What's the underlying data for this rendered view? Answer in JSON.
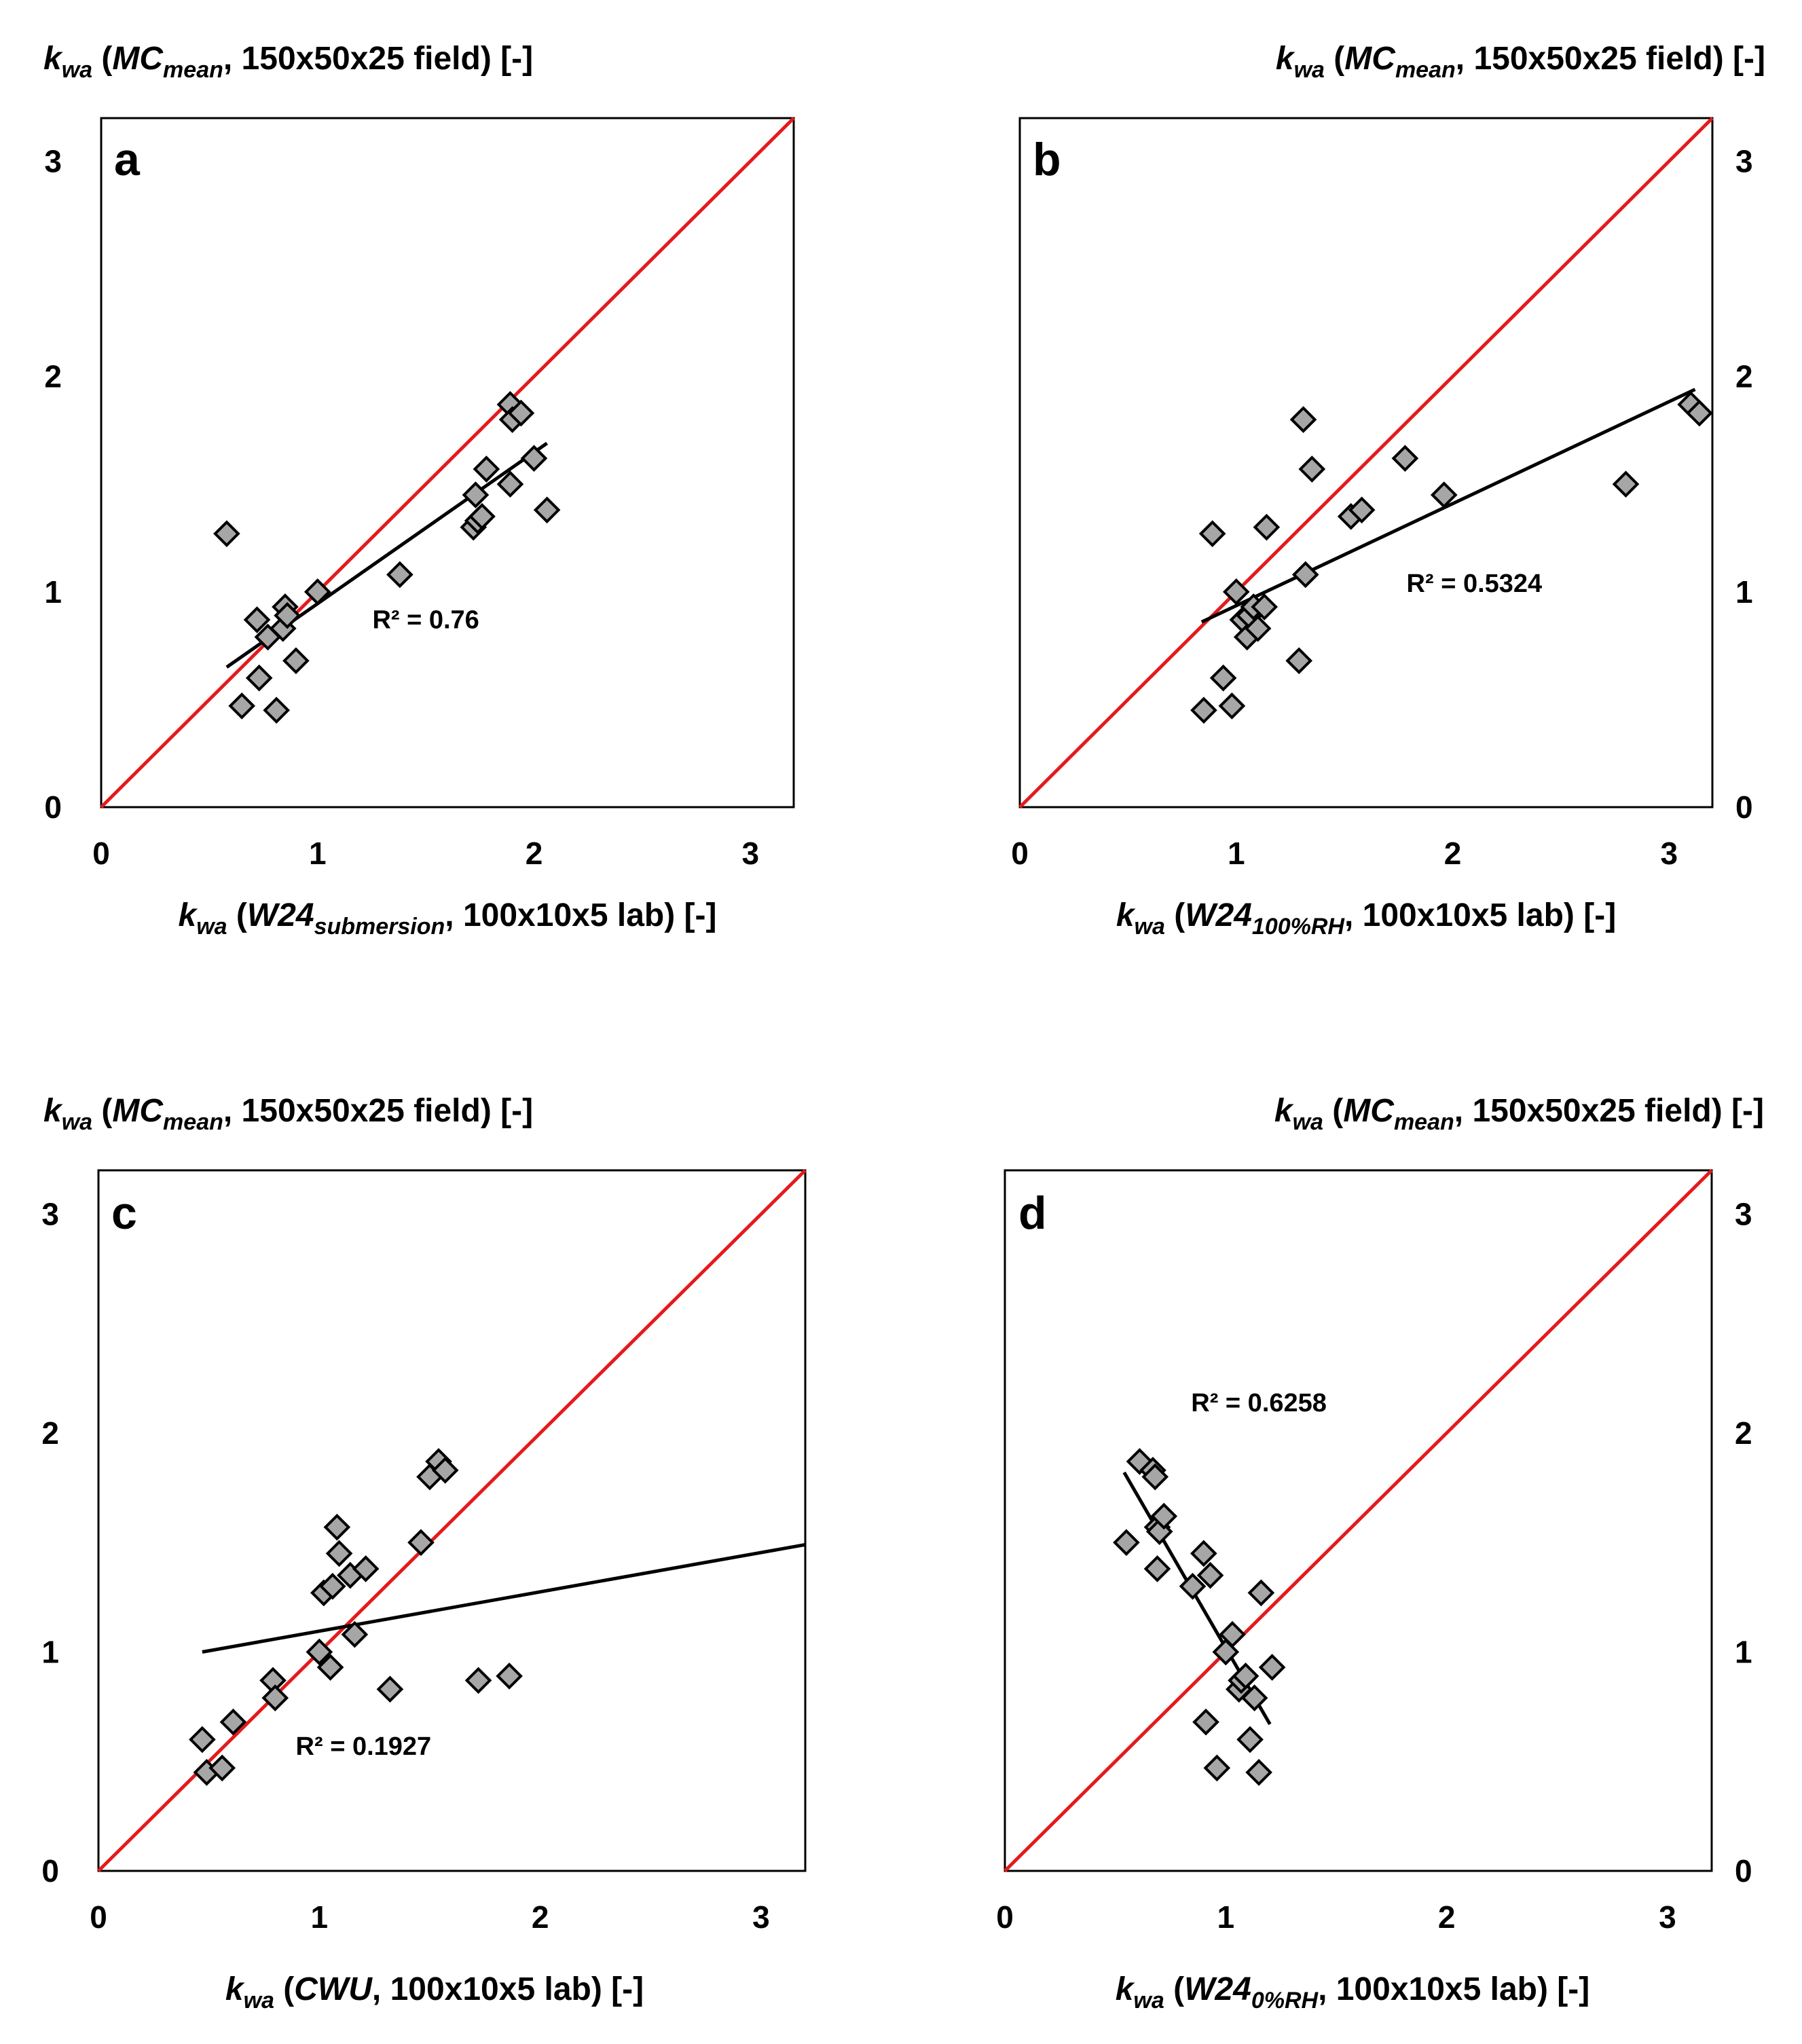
{
  "chart_data": [
    {
      "type": "scatter",
      "panel": "a",
      "title": "",
      "xlabel": {
        "base": "k",
        "sub": "wa",
        "open": " (",
        "italic": "W24",
        "italic_sub": "submersion",
        "rest": ", 100x10x5 lab) [-]"
      },
      "ylabel": {
        "base": "k",
        "sub": "wa",
        "open": " (",
        "italic": "MC",
        "italic_sub": "mean",
        "rest": ", 150x50x25 field) [-]"
      },
      "ylabel_side": "left",
      "xlim": [
        0,
        3.2
      ],
      "ylim": [
        0,
        3.2
      ],
      "xticks": [
        "0",
        "1",
        "2",
        "3"
      ],
      "yticks": [
        "0",
        "1",
        "2",
        "3"
      ],
      "identity_line": {
        "label": "1:1",
        "color": "#e41a1c"
      },
      "trendline": {
        "x": [
          0.58,
          2.06
        ],
        "y": [
          0.65,
          1.69
        ]
      },
      "r2_label": "R² = 0.76",
      "r2_pos": [
        1.5,
        0.83
      ],
      "points": {
        "x": [
          0.58,
          0.65,
          0.72,
          0.73,
          0.77,
          0.81,
          0.84,
          0.85,
          0.86,
          0.9,
          1.0,
          1.38,
          1.72,
          1.73,
          1.74,
          1.76,
          1.78,
          1.89,
          1.89,
          1.9,
          1.94,
          2.0,
          2.06
        ],
        "y": [
          1.27,
          0.47,
          0.87,
          0.6,
          0.79,
          0.45,
          0.83,
          0.93,
          0.89,
          0.68,
          1.0,
          1.08,
          1.3,
          1.45,
          1.33,
          1.35,
          1.57,
          1.5,
          1.87,
          1.8,
          1.83,
          1.62,
          1.38
        ]
      }
    },
    {
      "type": "scatter",
      "panel": "b",
      "title": "",
      "xlabel": {
        "base": "k",
        "sub": "wa",
        "open": " (",
        "italic": "W24",
        "italic_sub": "100%RH",
        "rest": ", 100x10x5 lab) [-]"
      },
      "ylabel": {
        "base": "k",
        "sub": "wa",
        "open": " (",
        "italic": "MC",
        "italic_sub": "mean",
        "rest": ", 150x50x25 field) [-]"
      },
      "ylabel_side": "right",
      "xlim": [
        0,
        3.2
      ],
      "ylim": [
        0,
        3.2
      ],
      "xticks": [
        "0",
        "1",
        "2",
        "3"
      ],
      "yticks": [
        "0",
        "1",
        "2",
        "3"
      ],
      "identity_line": {
        "label": "1:1",
        "color": "#e41a1c"
      },
      "trendline": {
        "x": [
          0.84,
          3.12
        ],
        "y": [
          0.86,
          1.94
        ]
      },
      "r2_label": "R² = 0.5324",
      "r2_pos": [
        2.1,
        1.0
      ],
      "points": {
        "x": [
          0.85,
          0.89,
          0.94,
          0.98,
          1.0,
          1.03,
          1.05,
          1.06,
          1.08,
          1.1,
          1.13,
          1.14,
          1.29,
          1.31,
          1.32,
          1.35,
          1.53,
          1.58,
          1.78,
          1.96,
          2.8,
          3.1,
          3.14
        ],
        "y": [
          0.45,
          1.27,
          0.6,
          0.47,
          1.0,
          0.87,
          0.79,
          0.89,
          0.93,
          0.83,
          0.93,
          1.3,
          0.68,
          1.8,
          1.08,
          1.57,
          1.35,
          1.38,
          1.62,
          1.45,
          1.5,
          1.87,
          1.83
        ]
      }
    },
    {
      "type": "scatter",
      "panel": "c",
      "title": "",
      "xlabel": {
        "base": "k",
        "sub": "wa",
        "open": " (",
        "italic": "CWU",
        "italic_sub": "",
        "rest": ", 100x10x5 lab) [-]"
      },
      "ylabel": {
        "base": "k",
        "sub": "wa",
        "open": " (",
        "italic": "MC",
        "italic_sub": "mean",
        "rest": ", 150x50x25 field) [-]"
      },
      "ylabel_side": "left",
      "xlim": [
        0,
        3.2
      ],
      "ylim": [
        0,
        3.2
      ],
      "xticks": [
        "0",
        "1",
        "2",
        "3"
      ],
      "yticks": [
        "0",
        "1",
        "2",
        "3"
      ],
      "identity_line": {
        "label": "1:1",
        "color": "#e41a1c"
      },
      "trendline": {
        "x": [
          0.47,
          3.2
        ],
        "y": [
          1.0,
          1.49
        ]
      },
      "r2_label": "R² = 0.1927",
      "r2_pos": [
        1.2,
        0.53
      ],
      "points": {
        "x": [
          0.47,
          0.49,
          0.56,
          0.61,
          0.79,
          0.8,
          1.0,
          1.02,
          1.05,
          1.06,
          1.08,
          1.09,
          1.14,
          1.16,
          1.21,
          1.32,
          1.46,
          1.5,
          1.54,
          1.57,
          1.72,
          1.86
        ],
        "y": [
          0.6,
          0.45,
          0.47,
          0.68,
          0.87,
          0.79,
          1.0,
          1.27,
          0.93,
          1.3,
          1.57,
          1.45,
          1.35,
          1.08,
          1.38,
          0.83,
          1.5,
          1.8,
          1.87,
          1.83,
          0.87,
          0.89
        ]
      }
    },
    {
      "type": "scatter",
      "panel": "d",
      "title": "",
      "xlabel": {
        "base": "k",
        "sub": "wa",
        "open": " (",
        "italic": "W24",
        "italic_sub": "0%RH",
        "rest": ", 100x10x5 lab) [-]"
      },
      "ylabel": {
        "base": "k",
        "sub": "wa",
        "open": " (",
        "italic": "MC",
        "italic_sub": "mean",
        "rest": ", 150x50x25 field) [-]"
      },
      "ylabel_side": "right",
      "xlim": [
        0,
        3.2
      ],
      "ylim": [
        0,
        3.2
      ],
      "xticks": [
        "0",
        "1",
        "2",
        "3"
      ],
      "yticks": [
        "0",
        "1",
        "2",
        "3"
      ],
      "identity_line": {
        "label": "1:1",
        "color": "#e41a1c"
      },
      "trendline": {
        "x": [
          0.54,
          1.2
        ],
        "y": [
          1.82,
          0.67
        ]
      },
      "r2_label": "R² = 0.6258",
      "r2_pos": [
        1.15,
        2.1
      ],
      "points": {
        "x": [
          0.55,
          0.61,
          0.67,
          0.68,
          0.69,
          0.69,
          0.7,
          0.72,
          0.85,
          0.9,
          0.91,
          0.93,
          0.96,
          1.0,
          1.03,
          1.06,
          1.07,
          1.09,
          1.11,
          1.13,
          1.15,
          1.16,
          1.21
        ],
        "y": [
          1.5,
          1.87,
          1.83,
          1.8,
          1.57,
          1.38,
          1.55,
          1.62,
          1.3,
          1.45,
          0.68,
          1.35,
          0.47,
          1.0,
          1.08,
          0.83,
          0.87,
          0.89,
          0.6,
          0.79,
          0.45,
          1.27,
          0.93
        ]
      }
    }
  ]
}
